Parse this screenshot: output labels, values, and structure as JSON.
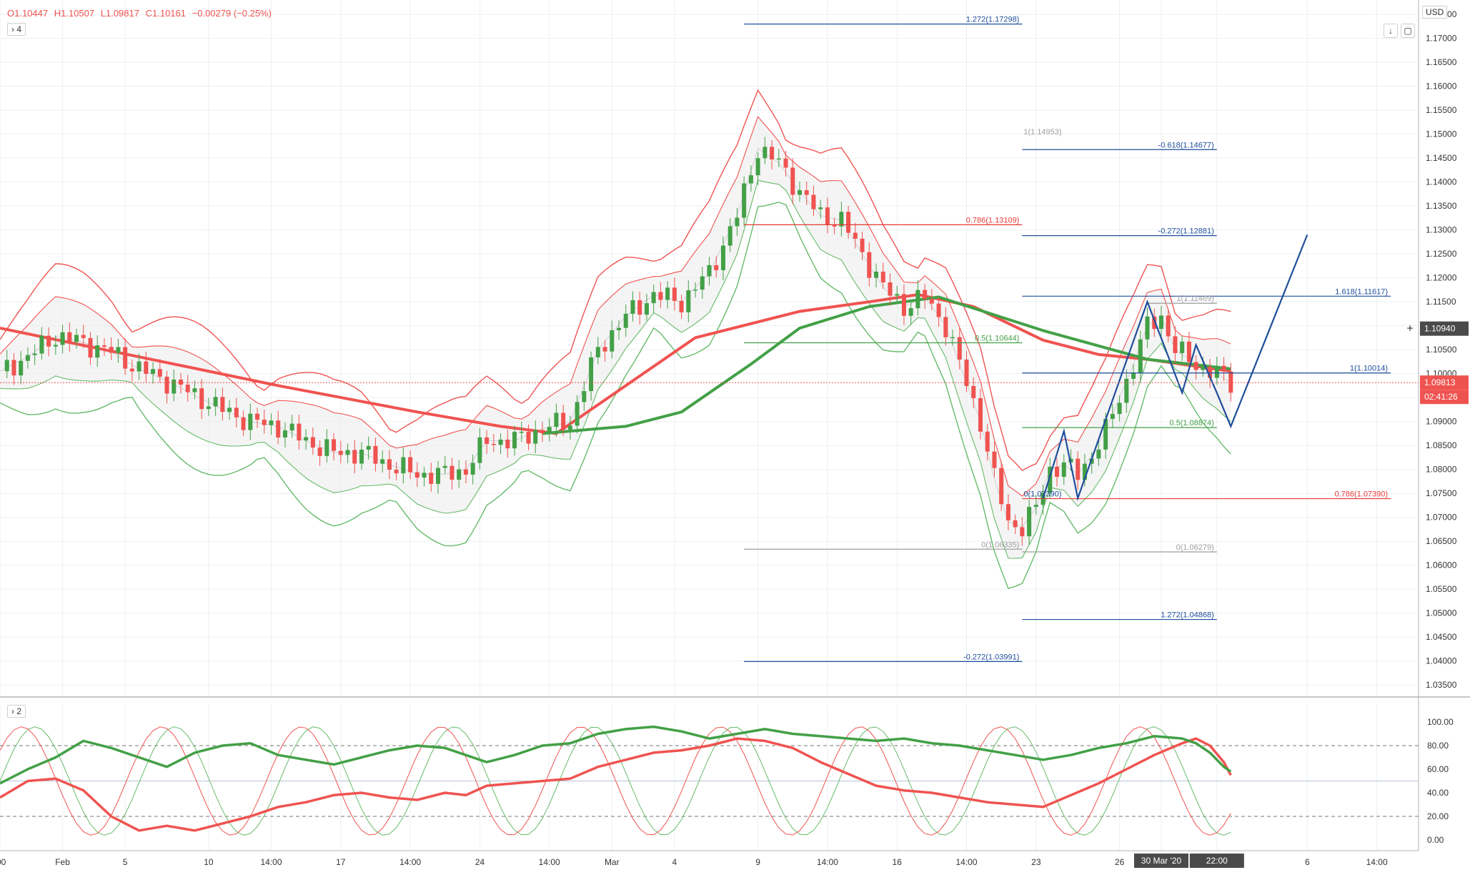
{
  "header": {
    "open": "O1.10447",
    "high": "H1.10507",
    "low": "L1.09817",
    "close": "C1.10161",
    "change": "−0.00279 (−0.25%)",
    "main_legend_toggle": "4",
    "osc_legend_toggle": "2",
    "currency": "USD",
    "scroll_down_icon": "arrow-down-icon",
    "screenshot_icon": "square-icon"
  },
  "colors": {
    "bearish": "#ef5350",
    "bullish": "#43a047",
    "fib_blue": "#1f4e9c",
    "fib_red": "#e53935",
    "band_red": "#ef5350",
    "band_green": "#66bb6a",
    "ma_red": "#ef5350",
    "ma_green": "#43a047",
    "grid": "#eceff3"
  },
  "price_badges": {
    "crosshair": "1.10940",
    "last_price": "1.09813",
    "countdown": "02:41:26"
  },
  "chart_data": {
    "type": "candlestick",
    "symbol_currency": "USD",
    "price_axis": [
      "1.17500",
      "1.17000",
      "1.16500",
      "1.16000",
      "1.15500",
      "1.15000",
      "1.14500",
      "1.14000",
      "1.13500",
      "1.13000",
      "1.12500",
      "1.12000",
      "1.11500",
      "1.11000",
      "1.10500",
      "1.10000",
      "1.09500",
      "1.09000",
      "1.08500",
      "1.08000",
      "1.07500",
      "1.07000",
      "1.06500",
      "1.06000",
      "1.05500",
      "1.05000",
      "1.04500",
      "1.04000",
      "1.03500"
    ],
    "ylim": [
      1.0325,
      1.178
    ],
    "oscillator_axis": [
      "100.00",
      "80.00",
      "60.00",
      "40.00",
      "20.00",
      "0.00"
    ],
    "time_axis": [
      {
        "label": ":00",
        "t": 0
      },
      {
        "label": "Feb",
        "t": 9
      },
      {
        "label": "5",
        "t": 18
      },
      {
        "label": "10",
        "t": 30
      },
      {
        "label": "14:00",
        "t": 39
      },
      {
        "label": "17",
        "t": 49
      },
      {
        "label": "14:00",
        "t": 59
      },
      {
        "label": "24",
        "t": 69
      },
      {
        "label": "14:00",
        "t": 79
      },
      {
        "label": "Mar",
        "t": 88
      },
      {
        "label": "4",
        "t": 97
      },
      {
        "label": "9",
        "t": 109
      },
      {
        "label": "14:00",
        "t": 119
      },
      {
        "label": "16",
        "t": 129
      },
      {
        "label": "14:00",
        "t": 139
      },
      {
        "label": "23",
        "t": 149
      },
      {
        "label": "26",
        "t": 161
      },
      {
        "label": "30 Mar '20",
        "t": 167
      },
      {
        "label": "22:00",
        "t": 175
      },
      {
        "label": "6",
        "t": 188
      },
      {
        "label": "14:00",
        "t": 198
      }
    ],
    "xlim": [
      0,
      204
    ],
    "last_index": 177,
    "price_path": [
      [
        0,
        1.1005
      ],
      [
        4,
        1.1035
      ],
      [
        8,
        1.1078
      ],
      [
        12,
        1.1065
      ],
      [
        16,
        1.1045
      ],
      [
        20,
        1.101
      ],
      [
        24,
        1.0985
      ],
      [
        28,
        1.0955
      ],
      [
        32,
        1.0925
      ],
      [
        36,
        1.09
      ],
      [
        40,
        1.089
      ],
      [
        44,
        1.086
      ],
      [
        48,
        1.0835
      ],
      [
        52,
        1.0835
      ],
      [
        56,
        1.081
      ],
      [
        60,
        1.079
      ],
      [
        64,
        1.079
      ],
      [
        67,
        1.08
      ],
      [
        70,
        1.086
      ],
      [
        74,
        1.086
      ],
      [
        78,
        1.0885
      ],
      [
        82,
        1.09
      ],
      [
        86,
        1.105
      ],
      [
        90,
        1.112
      ],
      [
        94,
        1.1165
      ],
      [
        98,
        1.115
      ],
      [
        102,
        1.121
      ],
      [
        106,
        1.133
      ],
      [
        109,
        1.147
      ],
      [
        112,
        1.144
      ],
      [
        115,
        1.138
      ],
      [
        118,
        1.133
      ],
      [
        121,
        1.132
      ],
      [
        124,
        1.125
      ],
      [
        127,
        1.118
      ],
      [
        130,
        1.114
      ],
      [
        133,
        1.116
      ],
      [
        136,
        1.11
      ],
      [
        138,
        1.102
      ],
      [
        141,
        1.09
      ],
      [
        143,
        1.078
      ],
      [
        145,
        1.069
      ],
      [
        147,
        1.068
      ],
      [
        149,
        1.072
      ],
      [
        151,
        1.08
      ],
      [
        153,
        1.081
      ],
      [
        155,
        1.079
      ],
      [
        157,
        1.083
      ],
      [
        159,
        1.088
      ],
      [
        161,
        1.095
      ],
      [
        163,
        1.102
      ],
      [
        165,
        1.11
      ],
      [
        167,
        1.112
      ],
      [
        169,
        1.105
      ],
      [
        171,
        1.103
      ],
      [
        173,
        1.101
      ],
      [
        175,
        1.1
      ],
      [
        177,
        1.0981
      ]
    ],
    "ma_red": [
      [
        0,
        1.1095
      ],
      [
        20,
        1.1035
      ],
      [
        40,
        1.0975
      ],
      [
        60,
        1.092
      ],
      [
        72,
        1.089
      ],
      [
        80,
        1.0875
      ],
      [
        100,
        1.1075
      ],
      [
        115,
        1.113
      ],
      [
        125,
        1.115
      ],
      [
        132,
        1.1165
      ],
      [
        140,
        1.114
      ],
      [
        150,
        1.107
      ],
      [
        158,
        1.104
      ],
      [
        165,
        1.103
      ],
      [
        177,
        1.1005
      ]
    ],
    "ma_green": [
      [
        78,
        1.0875
      ],
      [
        90,
        1.089
      ],
      [
        98,
        1.092
      ],
      [
        108,
        1.102
      ],
      [
        115,
        1.1095
      ],
      [
        125,
        1.114
      ],
      [
        135,
        1.116
      ],
      [
        150,
        1.109
      ],
      [
        165,
        1.103
      ],
      [
        177,
        1.101
      ]
    ],
    "fib_levels": [
      {
        "label": "1.272(1.17298)",
        "price": 1.17298,
        "x1": 107,
        "x2": 147,
        "color": "blue"
      },
      {
        "label": "1(1.14953)",
        "price": 1.14953,
        "x1": 147,
        "x2": 147,
        "color": "gray"
      },
      {
        "label": "-0.618(1.14677)",
        "price": 1.14677,
        "x1": 147,
        "x2": 175,
        "color": "blue"
      },
      {
        "label": "0.786(1.13109)",
        "price": 1.13109,
        "x1": 107,
        "x2": 147,
        "color": "red"
      },
      {
        "label": "-0.272(1.12881)",
        "price": 1.12881,
        "x1": 147,
        "x2": 175,
        "color": "blue"
      },
      {
        "label": "1.618(1.11617)",
        "price": 1.11617,
        "x1": 147,
        "x2": 200,
        "color": "blue"
      },
      {
        "label": "1(1.11469)",
        "price": 1.11469,
        "x1": 165,
        "x2": 175,
        "color": "gray"
      },
      {
        "label": "0.5(1.10644)",
        "price": 1.10644,
        "x1": 107,
        "x2": 147,
        "color": "green"
      },
      {
        "label": "1(1.10014)",
        "price": 1.10014,
        "x1": 147,
        "x2": 200,
        "color": "blue"
      },
      {
        "label": "0.5(1.08874)",
        "price": 1.08874,
        "x1": 147,
        "x2": 175,
        "color": "green"
      },
      {
        "label": "0.786(1.07390)",
        "price": 1.0739,
        "x1": 147,
        "x2": 200,
        "color": "red"
      },
      {
        "label": "0(1.07390)",
        "price": 1.0739,
        "x1": 147,
        "x2": 147,
        "color": "blue"
      },
      {
        "label": "0(1.06335)",
        "price": 1.06335,
        "x1": 107,
        "x2": 147,
        "color": "gray"
      },
      {
        "label": "0(1.06279)",
        "price": 1.06279,
        "x1": 147,
        "x2": 175,
        "color": "gray"
      },
      {
        "label": "1.272(1.04868)",
        "price": 1.04868,
        "x1": 147,
        "x2": 175,
        "color": "blue"
      },
      {
        "label": "-0.272(1.03991)",
        "price": 1.03991,
        "x1": 107,
        "x2": 147,
        "color": "blue"
      }
    ],
    "projection_path": [
      [
        150,
        1.074
      ],
      [
        153,
        1.088
      ],
      [
        155,
        1.074
      ],
      [
        165,
        1.115
      ],
      [
        170,
        1.096
      ],
      [
        172,
        1.106
      ],
      [
        175,
        1.096
      ],
      [
        177,
        1.089
      ],
      [
        188,
        1.129
      ]
    ],
    "oscillator_red": [
      [
        0,
        36
      ],
      [
        4,
        50
      ],
      [
        8,
        52
      ],
      [
        12,
        42
      ],
      [
        16,
        20
      ],
      [
        20,
        8
      ],
      [
        24,
        12
      ],
      [
        28,
        8
      ],
      [
        32,
        14
      ],
      [
        36,
        20
      ],
      [
        40,
        28
      ],
      [
        44,
        32
      ],
      [
        48,
        38
      ],
      [
        52,
        40
      ],
      [
        56,
        36
      ],
      [
        60,
        34
      ],
      [
        64,
        40
      ],
      [
        67,
        38
      ],
      [
        70,
        46
      ],
      [
        74,
        48
      ],
      [
        78,
        50
      ],
      [
        82,
        52
      ],
      [
        86,
        62
      ],
      [
        90,
        68
      ],
      [
        94,
        74
      ],
      [
        98,
        76
      ],
      [
        102,
        80
      ],
      [
        106,
        86
      ],
      [
        110,
        84
      ],
      [
        114,
        78
      ],
      [
        118,
        66
      ],
      [
        122,
        56
      ],
      [
        126,
        46
      ],
      [
        130,
        42
      ],
      [
        134,
        40
      ],
      [
        138,
        36
      ],
      [
        142,
        32
      ],
      [
        146,
        30
      ],
      [
        150,
        28
      ],
      [
        154,
        38
      ],
      [
        158,
        48
      ],
      [
        162,
        60
      ],
      [
        166,
        72
      ],
      [
        170,
        82
      ],
      [
        172,
        86
      ],
      [
        174,
        80
      ],
      [
        176,
        66
      ],
      [
        177,
        55
      ]
    ],
    "oscillator_green": [
      [
        0,
        48
      ],
      [
        4,
        60
      ],
      [
        8,
        70
      ],
      [
        12,
        84
      ],
      [
        16,
        78
      ],
      [
        20,
        70
      ],
      [
        24,
        62
      ],
      [
        28,
        74
      ],
      [
        32,
        80
      ],
      [
        36,
        82
      ],
      [
        40,
        72
      ],
      [
        44,
        68
      ],
      [
        48,
        64
      ],
      [
        52,
        70
      ],
      [
        56,
        76
      ],
      [
        60,
        80
      ],
      [
        64,
        78
      ],
      [
        67,
        72
      ],
      [
        70,
        66
      ],
      [
        74,
        72
      ],
      [
        78,
        80
      ],
      [
        82,
        82
      ],
      [
        86,
        90
      ],
      [
        90,
        94
      ],
      [
        94,
        96
      ],
      [
        98,
        92
      ],
      [
        102,
        86
      ],
      [
        106,
        90
      ],
      [
        110,
        94
      ],
      [
        114,
        90
      ],
      [
        118,
        88
      ],
      [
        122,
        86
      ],
      [
        126,
        84
      ],
      [
        130,
        86
      ],
      [
        134,
        82
      ],
      [
        138,
        80
      ],
      [
        142,
        76
      ],
      [
        146,
        72
      ],
      [
        150,
        68
      ],
      [
        154,
        72
      ],
      [
        158,
        78
      ],
      [
        162,
        82
      ],
      [
        166,
        88
      ],
      [
        170,
        86
      ],
      [
        172,
        82
      ],
      [
        174,
        74
      ],
      [
        176,
        62
      ],
      [
        177,
        58
      ]
    ]
  }
}
